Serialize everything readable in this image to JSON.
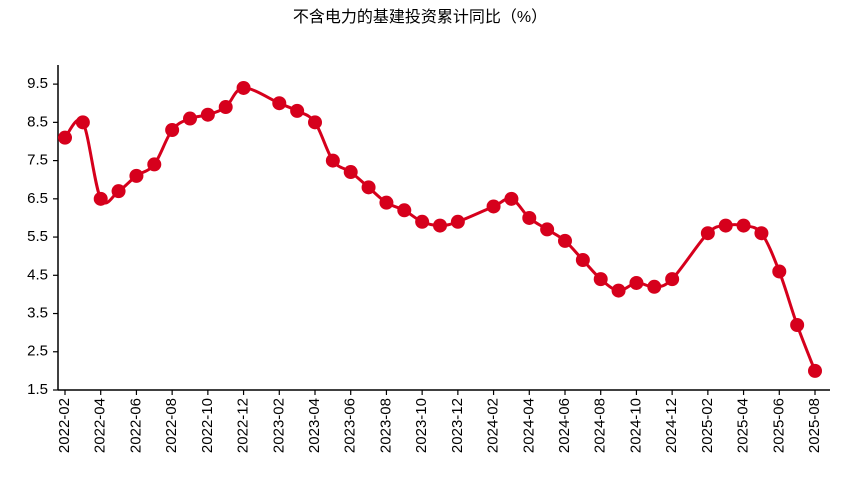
{
  "chart_data": {
    "type": "line",
    "title": "不含电力的基建投资累计同比（%）",
    "x": [
      "2022-02",
      "2022-03",
      "2022-04",
      "2022-05",
      "2022-06",
      "2022-07",
      "2022-08",
      "2022-09",
      "2022-10",
      "2022-11",
      "2022-12",
      "2023-02",
      "2023-03",
      "2023-04",
      "2023-05",
      "2023-06",
      "2023-07",
      "2023-08",
      "2023-09",
      "2023-10",
      "2023-11",
      "2023-12",
      "2024-02",
      "2024-03",
      "2024-04",
      "2024-05",
      "2024-06",
      "2024-07",
      "2024-08",
      "2024-09",
      "2024-10",
      "2024-11",
      "2024-12",
      "2025-02",
      "2025-03",
      "2025-04",
      "2025-05",
      "2025-06",
      "2025-07",
      "2025-08"
    ],
    "values": [
      8.1,
      8.5,
      6.5,
      6.7,
      7.1,
      7.4,
      8.3,
      8.6,
      8.7,
      8.9,
      9.4,
      9.0,
      8.8,
      8.5,
      7.5,
      7.2,
      6.8,
      6.4,
      6.2,
      5.9,
      5.8,
      5.9,
      6.3,
      6.5,
      6.0,
      5.7,
      5.4,
      4.9,
      4.4,
      4.1,
      4.3,
      4.2,
      4.4,
      5.6,
      5.8,
      5.8,
      5.6,
      4.6,
      3.2,
      2.0
    ],
    "color": "#d6001c",
    "xticks": [
      "2022-02",
      "2022-04",
      "2022-06",
      "2022-08",
      "2022-10",
      "2022-12",
      "2023-02",
      "2023-04",
      "2023-06",
      "2023-08",
      "2023-10",
      "2023-12",
      "2024-02",
      "2024-04",
      "2024-06",
      "2024-08",
      "2024-10",
      "2024-12",
      "2025-02",
      "2025-04",
      "2025-06",
      "2025-08"
    ],
    "ylim": [
      1.5,
      10
    ],
    "yticks": [
      1.5,
      2.5,
      3.5,
      4.5,
      5.5,
      6.5,
      7.5,
      8.5,
      9.5
    ]
  }
}
